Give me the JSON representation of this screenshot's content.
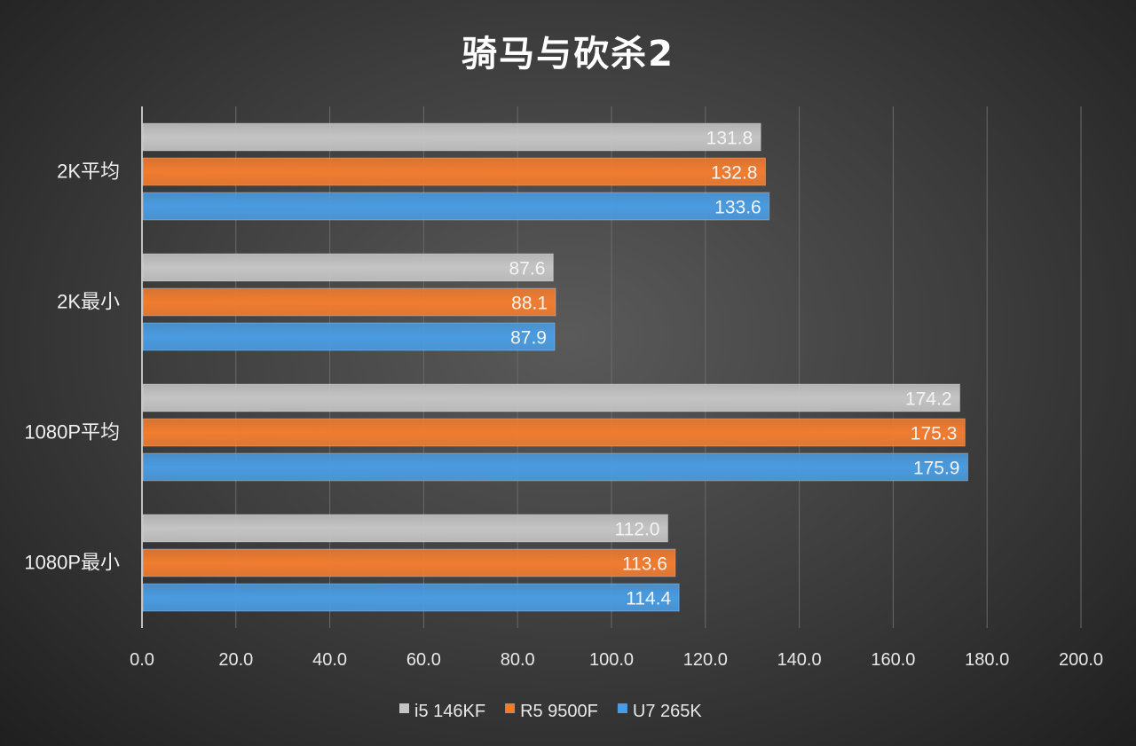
{
  "chart_data": {
    "type": "bar",
    "orientation": "horizontal",
    "title": "骑马与砍杀2",
    "categories": [
      "2K平均",
      "2K最小",
      "1080P平均",
      "1080P最小"
    ],
    "series": [
      {
        "name": "i5 146KF",
        "color": "#c4c4c4",
        "values": [
          131.8,
          87.6,
          174.2,
          112.0
        ]
      },
      {
        "name": "R5 9500F",
        "color": "#f07c30",
        "values": [
          132.8,
          88.1,
          175.3,
          113.6
        ]
      },
      {
        "name": "U7 265K",
        "color": "#4a9be0",
        "values": [
          133.6,
          87.9,
          175.9,
          114.4
        ]
      }
    ],
    "xlim": [
      0,
      200
    ],
    "xticks": [
      "0.0",
      "20.0",
      "40.0",
      "60.0",
      "80.0",
      "100.0",
      "120.0",
      "140.0",
      "160.0",
      "180.0",
      "200.0"
    ],
    "grid": true,
    "legend": "bottom-center"
  }
}
